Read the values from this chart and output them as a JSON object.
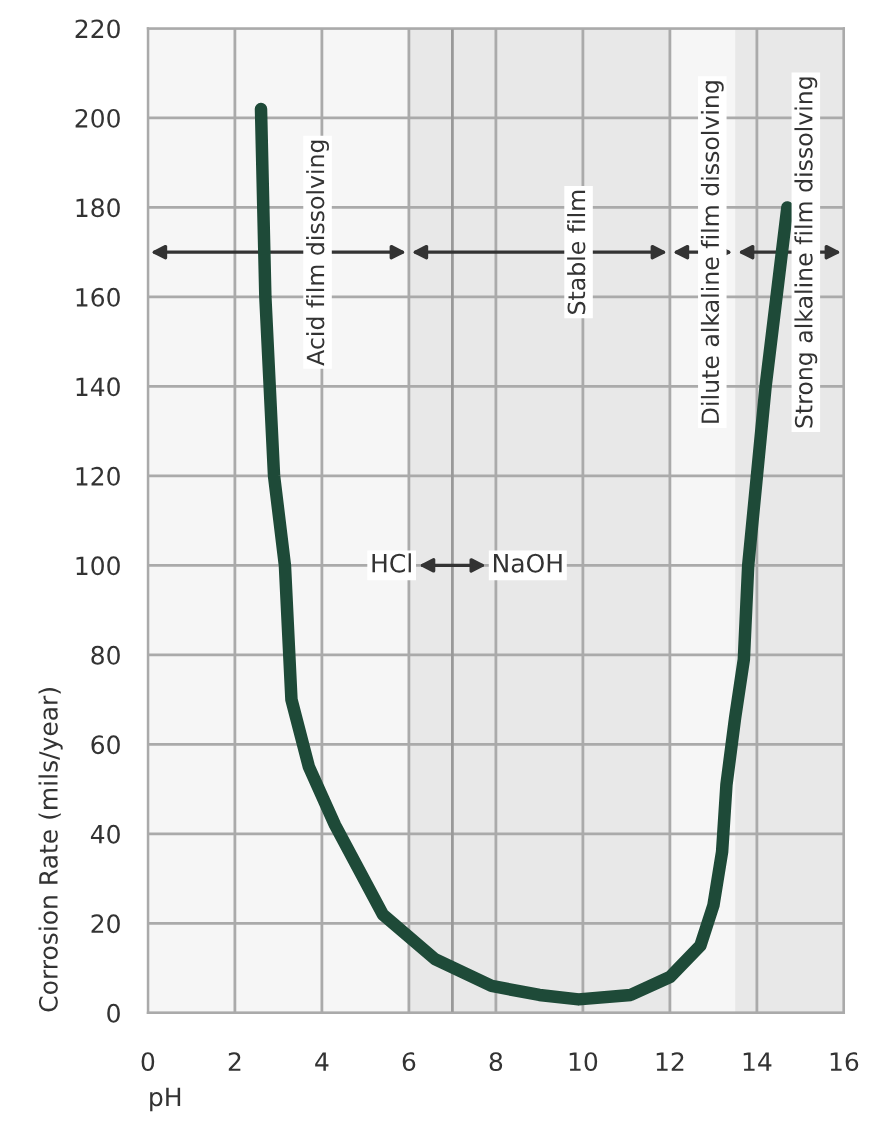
{
  "chart_data": {
    "type": "line",
    "xlabel": "pH",
    "ylabel": "Corrosion Rate (mils/year)",
    "x": [
      2.6,
      2.7,
      2.9,
      3.15,
      3.3,
      3.7,
      4.3,
      5.4,
      6.6,
      7.9,
      9.0,
      9.9,
      11.1,
      12.0,
      12.7,
      13.0,
      13.2,
      13.3,
      13.5,
      13.7,
      13.8,
      14.2,
      14.7
    ],
    "series": [
      {
        "color": "#1e4a38",
        "values": [
          202,
          160,
          120,
          100,
          70,
          55,
          42,
          22,
          12,
          6,
          4,
          3,
          4,
          8,
          15,
          24,
          36,
          51,
          66,
          79,
          100,
          140,
          180
        ]
      }
    ],
    "xlim": [
      0,
      16
    ],
    "xticks": [
      0,
      2,
      4,
      6,
      8,
      10,
      12,
      14,
      16
    ],
    "ylim": [
      0,
      220
    ],
    "yticks": [
      0,
      20,
      40,
      60,
      80,
      100,
      120,
      140,
      160,
      180,
      200,
      220
    ],
    "grid": true,
    "marker": "none",
    "line_style": "solid",
    "bands": [
      {
        "axis": "x",
        "from": 0,
        "to": 6,
        "label": "Acid film dissolving",
        "color": "#f6f6f6"
      },
      {
        "axis": "x",
        "from": 6,
        "to": 12,
        "label": "Stable film",
        "color": "#e8e8e8"
      },
      {
        "axis": "x",
        "from": 12,
        "to": 13.5,
        "label": "Dilute alkaline film dissolving",
        "color": "#f6f6f6"
      },
      {
        "axis": "x",
        "from": 13.5,
        "to": 16,
        "label": "Strong alkaline film dissolving",
        "color": "#e8e8e8"
      }
    ],
    "ref_lines": [
      {
        "axis": "x",
        "value": 7,
        "color": "#999999"
      }
    ],
    "annotations": [
      "HCl",
      "NaOH"
    ]
  }
}
